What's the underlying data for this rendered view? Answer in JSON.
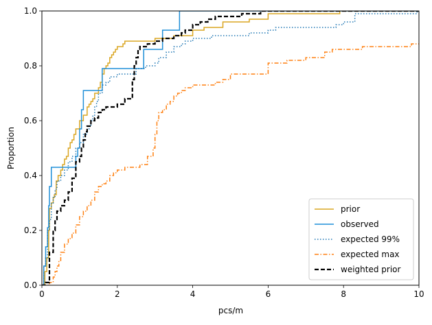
{
  "chart_data": {
    "type": "line",
    "xlabel": "pcs/m",
    "ylabel": "Proportion",
    "xlim": [
      0,
      10
    ],
    "ylim": [
      0,
      1
    ],
    "xticks": [
      0,
      2,
      4,
      6,
      8,
      10
    ],
    "xtick_labels": [
      "0",
      "2",
      "4",
      "6",
      "8",
      "10"
    ],
    "yticks": [
      0,
      0.2,
      0.4,
      0.6,
      0.8,
      1.0
    ],
    "ytick_labels": [
      "0.0",
      "0.2",
      "0.4",
      "0.6",
      "0.8",
      "1.0"
    ],
    "grid": false,
    "legend_position": "lower right",
    "series": [
      {
        "name": "prior",
        "color": "#DAA520",
        "style": "solid",
        "x": [
          0.0,
          0.08,
          0.13,
          0.18,
          0.2,
          0.25,
          0.3,
          0.33,
          0.38,
          0.43,
          0.5,
          0.55,
          0.6,
          0.65,
          0.7,
          0.75,
          0.8,
          0.85,
          0.9,
          1.0,
          1.1,
          1.2,
          1.25,
          1.3,
          1.35,
          1.4,
          1.5,
          1.55,
          1.6,
          1.65,
          1.7,
          1.75,
          1.8,
          1.85,
          1.9,
          1.95,
          2.0,
          2.05,
          2.1,
          2.15,
          2.2,
          2.3,
          2.75,
          3.0,
          3.5,
          4.0,
          4.3,
          4.5,
          4.8,
          5.2,
          5.5,
          6.0,
          7.9
        ],
        "y": [
          0.0,
          0.05,
          0.1,
          0.2,
          0.28,
          0.3,
          0.32,
          0.33,
          0.38,
          0.4,
          0.42,
          0.44,
          0.46,
          0.47,
          0.5,
          0.52,
          0.53,
          0.55,
          0.57,
          0.6,
          0.62,
          0.65,
          0.66,
          0.67,
          0.68,
          0.7,
          0.72,
          0.74,
          0.77,
          0.79,
          0.8,
          0.81,
          0.83,
          0.84,
          0.85,
          0.86,
          0.87,
          0.87,
          0.87,
          0.88,
          0.89,
          0.89,
          0.89,
          0.9,
          0.91,
          0.93,
          0.94,
          0.94,
          0.96,
          0.96,
          0.97,
          0.99,
          1.0
        ]
      },
      {
        "name": "observed",
        "color": "#1F8FD8",
        "style": "solid",
        "x": [
          0.0,
          0.05,
          0.1,
          0.15,
          0.18,
          0.2,
          0.25,
          0.8,
          0.9,
          0.95,
          1.0,
          1.05,
          1.1,
          1.6,
          2.0,
          2.7,
          3.2,
          3.65
        ],
        "y": [
          0.0,
          0.07,
          0.14,
          0.21,
          0.29,
          0.36,
          0.43,
          0.43,
          0.47,
          0.5,
          0.57,
          0.64,
          0.71,
          0.79,
          0.79,
          0.86,
          0.93,
          1.0
        ]
      },
      {
        "name": "expected 99%",
        "color": "#1F77B4",
        "style": "dotted",
        "x": [
          0.0,
          0.05,
          0.1,
          0.15,
          0.2,
          0.25,
          0.3,
          0.35,
          0.4,
          0.5,
          0.6,
          0.7,
          0.8,
          0.9,
          1.0,
          1.1,
          1.2,
          1.25,
          1.3,
          1.35,
          1.4,
          1.45,
          1.5,
          1.6,
          1.7,
          1.8,
          2.0,
          2.5,
          2.75,
          3.0,
          3.1,
          3.3,
          3.5,
          3.7,
          3.8,
          4.0,
          4.5,
          5.5,
          6.0,
          6.2,
          6.5,
          7.8,
          8.0,
          8.3,
          9.0,
          9.95
        ],
        "y": [
          0.0,
          0.07,
          0.1,
          0.2,
          0.24,
          0.3,
          0.32,
          0.35,
          0.38,
          0.4,
          0.42,
          0.45,
          0.47,
          0.5,
          0.52,
          0.55,
          0.57,
          0.58,
          0.6,
          0.62,
          0.65,
          0.67,
          0.7,
          0.73,
          0.74,
          0.76,
          0.77,
          0.79,
          0.8,
          0.81,
          0.83,
          0.85,
          0.87,
          0.88,
          0.89,
          0.9,
          0.91,
          0.92,
          0.93,
          0.94,
          0.94,
          0.95,
          0.96,
          0.99,
          0.99,
          1.0
        ]
      },
      {
        "name": "expected max",
        "color": "#FF7F0E",
        "style": "dashdot",
        "x": [
          0.0,
          0.2,
          0.3,
          0.35,
          0.4,
          0.45,
          0.5,
          0.6,
          0.7,
          0.8,
          0.9,
          1.0,
          1.1,
          1.2,
          1.3,
          1.4,
          1.5,
          1.6,
          1.7,
          1.8,
          1.9,
          2.0,
          2.2,
          2.4,
          2.6,
          2.8,
          2.95,
          3.0,
          3.05,
          3.1,
          3.2,
          3.3,
          3.4,
          3.5,
          3.6,
          3.7,
          3.8,
          4.0,
          4.3,
          4.6,
          4.8,
          5.0,
          5.5,
          6.0,
          6.5,
          7.0,
          7.5,
          7.7,
          8.0,
          8.5,
          9.0,
          9.5,
          9.8,
          10.0
        ],
        "y": [
          0.0,
          0.01,
          0.03,
          0.05,
          0.07,
          0.09,
          0.12,
          0.15,
          0.17,
          0.19,
          0.22,
          0.25,
          0.27,
          0.29,
          0.31,
          0.34,
          0.36,
          0.37,
          0.38,
          0.4,
          0.41,
          0.42,
          0.43,
          0.43,
          0.44,
          0.47,
          0.5,
          0.55,
          0.6,
          0.63,
          0.64,
          0.66,
          0.67,
          0.69,
          0.7,
          0.71,
          0.72,
          0.73,
          0.73,
          0.74,
          0.75,
          0.77,
          0.77,
          0.81,
          0.82,
          0.83,
          0.85,
          0.86,
          0.86,
          0.87,
          0.87,
          0.87,
          0.88,
          0.88
        ]
      },
      {
        "name": "weighted prior",
        "color": "#000000",
        "style": "dashed",
        "x": [
          0.0,
          0.1,
          0.2,
          0.3,
          0.35,
          0.4,
          0.5,
          0.6,
          0.7,
          0.8,
          0.9,
          1.0,
          1.05,
          1.1,
          1.15,
          1.2,
          1.3,
          1.4,
          1.5,
          1.6,
          1.7,
          2.0,
          2.2,
          2.4,
          2.45,
          2.5,
          2.55,
          2.6,
          2.8,
          3.0,
          3.2,
          3.5,
          3.7,
          3.8,
          4.0,
          4.2,
          4.4,
          4.6,
          5.0,
          5.3,
          5.5,
          5.8
        ],
        "y": [
          0.0,
          0.01,
          0.12,
          0.2,
          0.24,
          0.27,
          0.29,
          0.31,
          0.34,
          0.39,
          0.45,
          0.47,
          0.5,
          0.53,
          0.56,
          0.58,
          0.6,
          0.61,
          0.63,
          0.64,
          0.65,
          0.66,
          0.68,
          0.75,
          0.8,
          0.83,
          0.86,
          0.87,
          0.88,
          0.89,
          0.9,
          0.91,
          0.92,
          0.93,
          0.95,
          0.96,
          0.97,
          0.98,
          0.98,
          0.99,
          0.99,
          1.0
        ]
      }
    ]
  }
}
